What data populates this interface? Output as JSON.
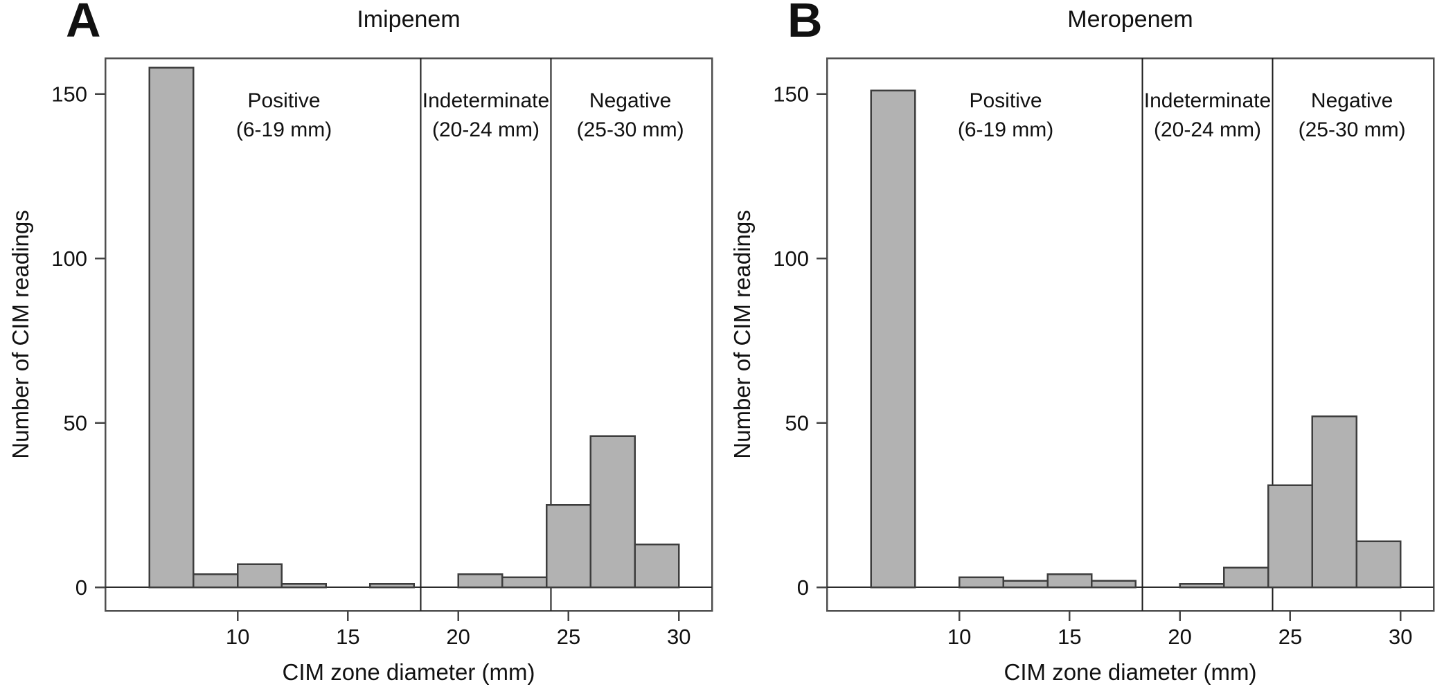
{
  "chart_data": [
    {
      "type": "bar",
      "subtype": "histogram",
      "panel_label": "A",
      "title": "Imipenem",
      "xlabel": "CIM zone diameter (mm)",
      "ylabel": "Number of CIM readings",
      "bin_start_mm": 6,
      "bin_width_mm": 2,
      "bin_edges_mm": [
        6,
        8,
        10,
        12,
        14,
        16,
        18,
        20,
        22,
        24,
        26,
        28,
        30
      ],
      "counts": [
        158,
        4,
        7,
        1,
        0,
        1,
        0,
        4,
        3,
        25,
        46,
        13
      ],
      "x_ticks": [
        10,
        15,
        20,
        25,
        30
      ],
      "y_ticks": [
        0,
        50,
        100,
        150
      ],
      "xlim_mm": [
        4,
        31.5
      ],
      "ylim": [
        -7,
        161
      ],
      "grid": false,
      "dividers_mm": [
        18.3,
        24.2
      ],
      "regions": [
        {
          "label": "Positive",
          "range_label": "(6-19 mm)",
          "center_mm": 12.1
        },
        {
          "label": "Indeterminate",
          "range_label": "(20-24 mm)",
          "center_mm": 21.25
        },
        {
          "label": "Negative",
          "range_label": "(25-30 mm)",
          "center_mm": 27.8
        }
      ]
    },
    {
      "type": "bar",
      "subtype": "histogram",
      "panel_label": "B",
      "title": "Meropenem",
      "xlabel": "CIM zone diameter (mm)",
      "ylabel": "Number of CIM readings",
      "bin_start_mm": 6,
      "bin_width_mm": 2,
      "bin_edges_mm": [
        6,
        8,
        10,
        12,
        14,
        16,
        18,
        20,
        22,
        24,
        26,
        28,
        30
      ],
      "counts": [
        151,
        0,
        3,
        2,
        4,
        2,
        0,
        1,
        6,
        31,
        52,
        14
      ],
      "x_ticks": [
        10,
        15,
        20,
        25,
        30
      ],
      "y_ticks": [
        0,
        50,
        100,
        150
      ],
      "xlim_mm": [
        4,
        31.5
      ],
      "ylim": [
        -7,
        161
      ],
      "grid": false,
      "dividers_mm": [
        18.3,
        24.2
      ],
      "regions": [
        {
          "label": "Positive",
          "range_label": "(6-19 mm)",
          "center_mm": 12.1
        },
        {
          "label": "Indeterminate",
          "range_label": "(20-24 mm)",
          "center_mm": 21.25
        },
        {
          "label": "Negative",
          "range_label": "(25-30 mm)",
          "center_mm": 27.8
        }
      ]
    }
  ],
  "style": {
    "background": "#ffffff",
    "bar_fill": "#b2b2b2",
    "bar_stroke": "#3d3d3d",
    "box_stroke": "#4f4f4f",
    "zero_line_color": "#2b2b2b",
    "divider_color": "#1a1a1a",
    "tick_color": "#444444",
    "text_color": "#111111"
  }
}
